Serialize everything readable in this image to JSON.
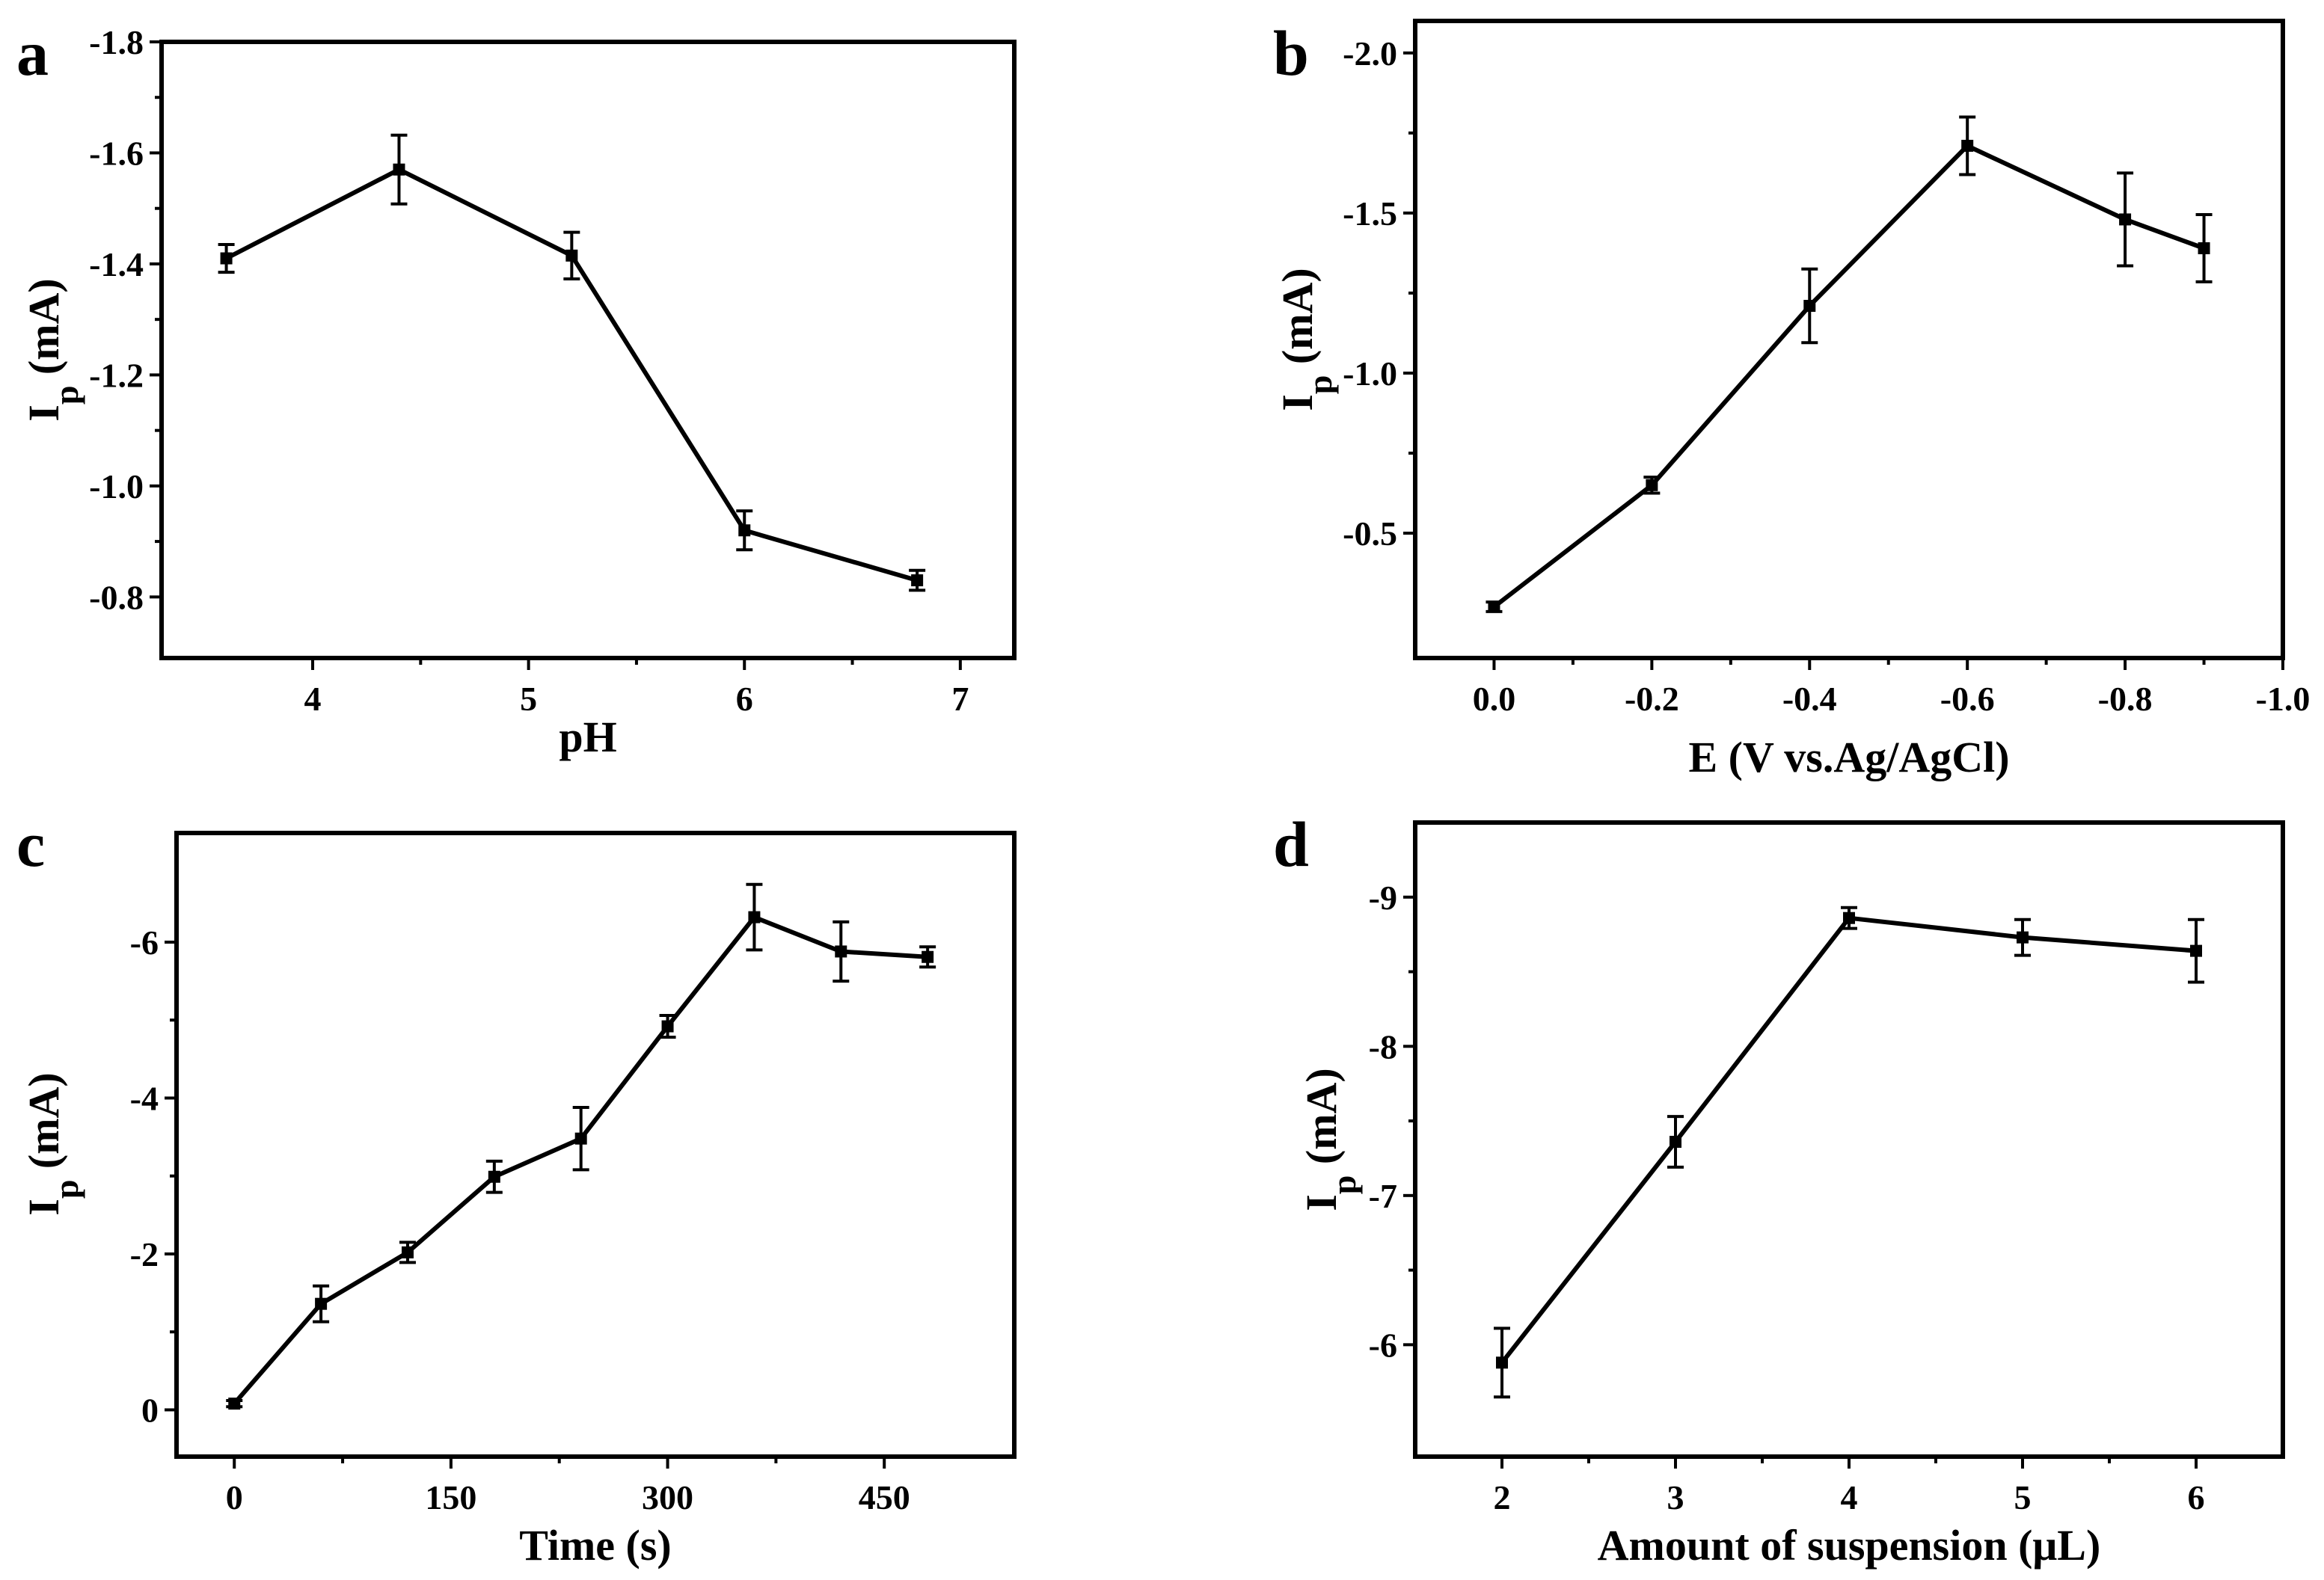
{
  "colors": {
    "ink": "#000000",
    "background": "#ffffff"
  },
  "chart_data": [
    {
      "panel": "a",
      "type": "line",
      "title": "",
      "xlabel": "pH",
      "ylabel": {
        "main": "I",
        "sub": "p",
        "unit": " (mA)"
      },
      "xlim": [
        3.3,
        7.25
      ],
      "ylim": [
        -0.69,
        -1.8
      ],
      "x_ticks": [
        4,
        5,
        6,
        7
      ],
      "x_tick_labels": [
        "4",
        "5",
        "6",
        "7"
      ],
      "y_ticks": [
        -0.8,
        -1.0,
        -1.2,
        -1.4,
        -1.6,
        -1.8
      ],
      "y_tick_labels": [
        "-0.8",
        "-1.0",
        "-1.2",
        "-1.4",
        "-1.6",
        "-1.8"
      ],
      "grid": false,
      "series": [
        {
          "name": "Ip",
          "x": [
            3.6,
            4.4,
            5.2,
            6.0,
            6.8
          ],
          "y": [
            -1.41,
            -1.57,
            -1.415,
            -0.92,
            -0.83
          ],
          "err": [
            0.025,
            0.062,
            0.042,
            0.035,
            0.018
          ]
        }
      ]
    },
    {
      "panel": "b",
      "type": "line",
      "title": "",
      "xlabel": "E (V vs.Ag/AgCl)",
      "ylabel": {
        "main": "I",
        "sub": "p",
        "unit": " (mA)"
      },
      "xlim": [
        0.1,
        -1.0
      ],
      "ylim": [
        -0.11,
        -2.1
      ],
      "x_ticks": [
        0.0,
        -0.2,
        -0.4,
        -0.6,
        -0.8,
        -1.0
      ],
      "x_tick_labels": [
        "0.0",
        "-0.2",
        "-0.4",
        "-0.6",
        "-0.8",
        "-1.0"
      ],
      "y_ticks": [
        -0.5,
        -1.0,
        -1.5,
        -2.0
      ],
      "y_tick_labels": [
        "-0.5",
        "-1.0",
        "-1.5",
        "-2.0"
      ],
      "grid": false,
      "series": [
        {
          "name": "Ip",
          "x": [
            0.0,
            -0.2,
            -0.4,
            -0.6,
            -0.8,
            -0.9
          ],
          "y": [
            -0.27,
            -0.65,
            -1.21,
            -1.71,
            -1.48,
            -1.39
          ],
          "err": [
            0.015,
            0.025,
            0.115,
            0.09,
            0.145,
            0.105
          ]
        }
      ]
    },
    {
      "panel": "c",
      "type": "line",
      "title": "",
      "xlabel": "Time (s)",
      "ylabel": {
        "main": "I",
        "sub": "p",
        "unit": " (mA)"
      },
      "xlim": [
        -40,
        540
      ],
      "ylim": [
        0.6,
        -7.4
      ],
      "x_ticks": [
        0,
        150,
        300,
        450
      ],
      "x_tick_labels": [
        "0",
        "150",
        "300",
        "450"
      ],
      "y_ticks": [
        0,
        -2,
        -4,
        -6
      ],
      "y_tick_labels": [
        "0",
        "-2",
        "-4",
        "-6"
      ],
      "grid": false,
      "series": [
        {
          "name": "Ip",
          "x": [
            0,
            60,
            120,
            180,
            240,
            300,
            360,
            420,
            480
          ],
          "y": [
            -0.08,
            -1.36,
            -2.02,
            -2.99,
            -3.48,
            -4.92,
            -6.32,
            -5.88,
            -5.81
          ],
          "err": [
            0.04,
            0.23,
            0.13,
            0.2,
            0.4,
            0.14,
            0.42,
            0.38,
            0.13
          ]
        }
      ]
    },
    {
      "panel": "d",
      "type": "line",
      "title": "",
      "xlabel": "Amount of suspension (μL)",
      "ylabel": {
        "main": "I",
        "sub": "p",
        "unit": " (mA)"
      },
      "xlim": [
        1.5,
        6.5
      ],
      "ylim": [
        -5.25,
        -9.5
      ],
      "x_ticks": [
        2,
        3,
        4,
        5,
        6
      ],
      "x_tick_labels": [
        "2",
        "3",
        "4",
        "5",
        "6"
      ],
      "y_ticks": [
        -6,
        -7,
        -8,
        -9
      ],
      "y_tick_labels": [
        "-6",
        "-7",
        "-8",
        "-9"
      ],
      "grid": false,
      "series": [
        {
          "name": "Ip",
          "x": [
            2,
            3,
            4,
            5,
            6
          ],
          "y": [
            -5.88,
            -7.36,
            -8.86,
            -8.73,
            -8.64
          ],
          "err": [
            0.23,
            0.17,
            0.07,
            0.12,
            0.21
          ]
        }
      ]
    }
  ]
}
